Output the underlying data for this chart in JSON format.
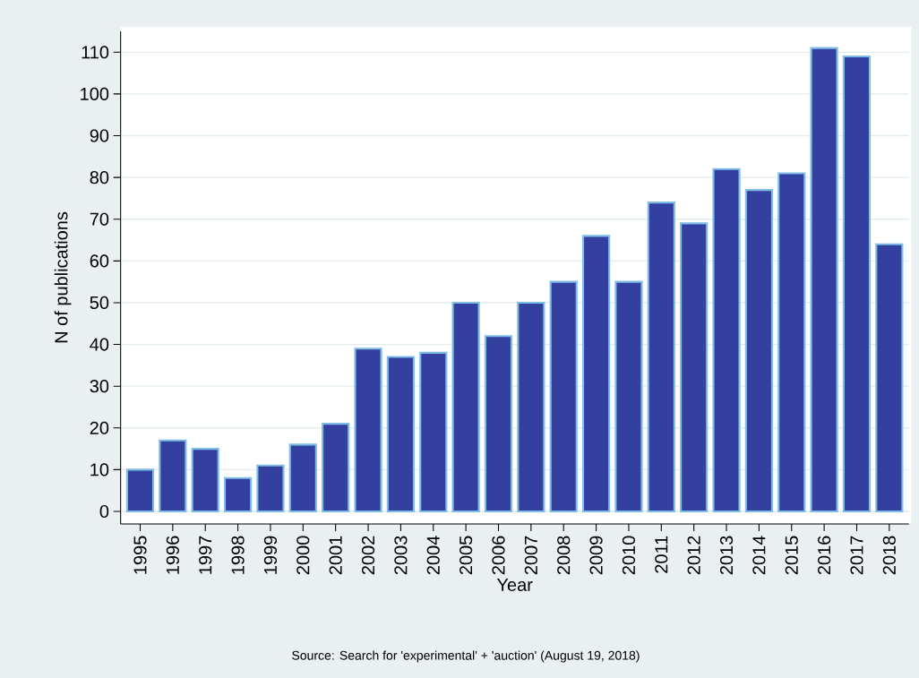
{
  "chart_data": {
    "type": "bar",
    "xlabel": "Year",
    "ylabel": "N of publications",
    "categories": [
      "1995",
      "1996",
      "1997",
      "1998",
      "1999",
      "2000",
      "2001",
      "2002",
      "2003",
      "2004",
      "2005",
      "2006",
      "2007",
      "2008",
      "2009",
      "2010",
      "2011",
      "2012",
      "2013",
      "2014",
      "2015",
      "2016",
      "2017",
      "2018"
    ],
    "values": [
      10,
      17,
      15,
      8,
      11,
      16,
      21,
      39,
      37,
      38,
      50,
      42,
      50,
      55,
      66,
      55,
      74,
      69,
      82,
      77,
      81,
      111,
      109,
      64
    ],
    "color": "#3340a0",
    "ylim": [
      -3,
      115
    ],
    "yticks": [
      0,
      10,
      20,
      30,
      40,
      50,
      60,
      70,
      80,
      90,
      100,
      110
    ],
    "grid": "y",
    "annotations": [
      "Source:  Search for 'experimental' + 'auction' (August 19, 2018)"
    ]
  }
}
